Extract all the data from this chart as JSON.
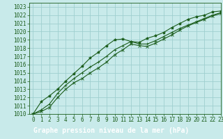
{
  "title": "Graphe pression niveau de la mer (hPa)",
  "bg_color": "#c8eaea",
  "label_bg_color": "#2d6b2d",
  "grid_color": "#9fcfcf",
  "line_color": "#1a5c1a",
  "marker_color": "#1a5c1a",
  "xlim": [
    -0.5,
    23
  ],
  "ylim": [
    1010,
    1023.5
  ],
  "xticks": [
    0,
    1,
    2,
    3,
    4,
    5,
    6,
    7,
    8,
    9,
    10,
    11,
    12,
    13,
    14,
    15,
    16,
    17,
    18,
    19,
    20,
    21,
    22,
    23
  ],
  "yticks": [
    1010,
    1011,
    1012,
    1013,
    1014,
    1015,
    1016,
    1017,
    1018,
    1019,
    1020,
    1021,
    1022,
    1023
  ],
  "series": [
    [
      1010.0,
      1011.5,
      1012.2,
      1013.0,
      1014.0,
      1014.9,
      1015.8,
      1016.8,
      1017.5,
      1018.3,
      1019.0,
      1019.1,
      1018.8,
      1018.7,
      1019.2,
      1019.5,
      1019.9,
      1020.5,
      1021.0,
      1021.5,
      1021.8,
      1022.0,
      1022.4,
      1022.5
    ],
    [
      1010.0,
      1010.5,
      1011.2,
      1012.5,
      1013.5,
      1014.3,
      1015.0,
      1015.7,
      1016.3,
      1017.0,
      1017.8,
      1018.3,
      1018.8,
      1018.5,
      1018.5,
      1018.9,
      1019.4,
      1019.9,
      1020.4,
      1020.8,
      1021.2,
      1021.6,
      1022.0,
      1022.3
    ],
    [
      1010.0,
      1010.3,
      1010.8,
      1012.0,
      1013.0,
      1013.8,
      1014.3,
      1015.0,
      1015.6,
      1016.3,
      1017.2,
      1017.8,
      1018.5,
      1018.3,
      1018.2,
      1018.6,
      1019.1,
      1019.6,
      1020.2,
      1020.7,
      1021.1,
      1021.5,
      1021.9,
      1022.2
    ]
  ],
  "fontsize_tick": 5.5,
  "fontsize_label": 7,
  "tick_color": "#1a5c1a",
  "label_text_color": "#ffffff"
}
